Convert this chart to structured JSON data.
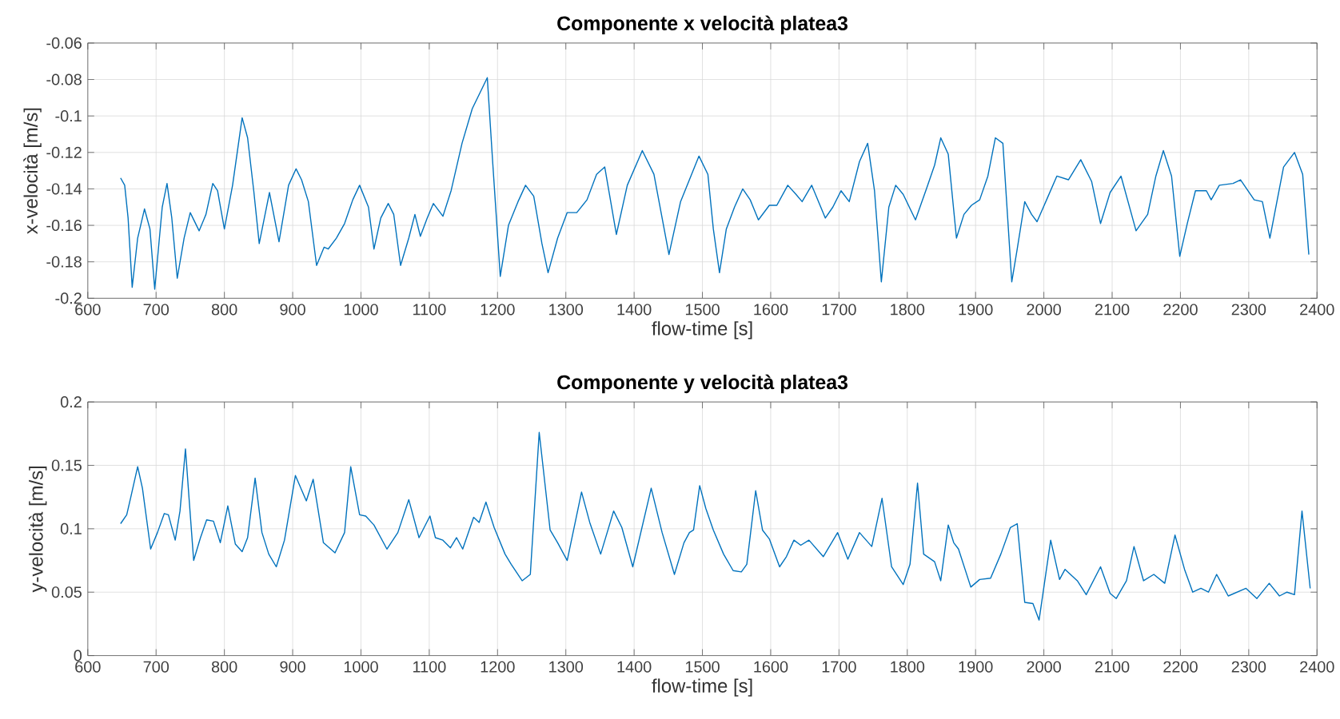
{
  "chart_data": [
    {
      "type": "line",
      "title": "Componente x velocità platea3",
      "xlabel": "flow-time [s]",
      "ylabel": "x-velocità [m/s]",
      "grid": true,
      "xlim": [
        600,
        2400
      ],
      "ylim": [
        -0.2,
        -0.06
      ],
      "xticks": [
        600,
        700,
        800,
        900,
        1000,
        1100,
        1200,
        1300,
        1400,
        1500,
        1600,
        1700,
        1800,
        1900,
        2000,
        2100,
        2200,
        2300,
        2400
      ],
      "yticks": [
        -0.2,
        -0.18,
        -0.16,
        -0.14,
        -0.12,
        -0.1,
        -0.08,
        -0.06
      ],
      "series": [
        {
          "color": "#0072bd",
          "x": [
            648,
            654,
            659,
            665,
            673,
            683,
            691,
            698,
            709,
            716,
            723,
            731,
            741,
            750,
            763,
            773,
            783,
            790,
            800,
            812,
            826,
            834,
            843,
            851,
            866,
            880,
            894,
            905,
            913,
            923,
            935,
            946,
            952,
            964,
            976,
            988,
            998,
            1011,
            1019,
            1029,
            1040,
            1048,
            1058,
            1070,
            1079,
            1087,
            1097,
            1106,
            1120,
            1132,
            1148,
            1163,
            1185,
            1193,
            1204,
            1216,
            1230,
            1241,
            1253,
            1265,
            1274,
            1288,
            1302,
            1316,
            1331,
            1345,
            1357,
            1374,
            1390,
            1412,
            1429,
            1451,
            1468,
            1495,
            1508,
            1516,
            1525,
            1535,
            1547,
            1559,
            1570,
            1582,
            1598,
            1609,
            1625,
            1637,
            1646,
            1660,
            1680,
            1691,
            1703,
            1715,
            1730,
            1742,
            1752,
            1762,
            1773,
            1783,
            1794,
            1812,
            1828,
            1840,
            1849,
            1860,
            1872,
            1883,
            1894,
            1906,
            1918,
            1929,
            1940,
            1953,
            1961,
            1972,
            1982,
            1990,
            2004,
            2019,
            2036,
            2054,
            2070,
            2083,
            2097,
            2113,
            2135,
            2152,
            2164,
            2175,
            2187,
            2199,
            2210,
            2222,
            2238,
            2245,
            2257,
            2277,
            2288,
            2308,
            2320,
            2331,
            2351,
            2367,
            2379,
            2388
          ],
          "values": [
            -0.134,
            -0.138,
            -0.156,
            -0.194,
            -0.167,
            -0.151,
            -0.162,
            -0.195,
            -0.15,
            -0.137,
            -0.156,
            -0.189,
            -0.167,
            -0.153,
            -0.163,
            -0.154,
            -0.137,
            -0.141,
            -0.162,
            -0.138,
            -0.101,
            -0.112,
            -0.141,
            -0.17,
            -0.142,
            -0.169,
            -0.138,
            -0.129,
            -0.135,
            -0.147,
            -0.182,
            -0.172,
            -0.173,
            -0.167,
            -0.159,
            -0.146,
            -0.138,
            -0.15,
            -0.173,
            -0.156,
            -0.148,
            -0.154,
            -0.182,
            -0.167,
            -0.154,
            -0.166,
            -0.156,
            -0.148,
            -0.155,
            -0.141,
            -0.115,
            -0.096,
            -0.079,
            -0.126,
            -0.188,
            -0.16,
            -0.147,
            -0.138,
            -0.144,
            -0.17,
            -0.186,
            -0.167,
            -0.153,
            -0.153,
            -0.146,
            -0.132,
            -0.128,
            -0.165,
            -0.138,
            -0.119,
            -0.132,
            -0.176,
            -0.147,
            -0.122,
            -0.132,
            -0.162,
            -0.186,
            -0.162,
            -0.15,
            -0.14,
            -0.146,
            -0.157,
            -0.149,
            -0.149,
            -0.138,
            -0.143,
            -0.147,
            -0.138,
            -0.156,
            -0.15,
            -0.141,
            -0.147,
            -0.125,
            -0.115,
            -0.141,
            -0.191,
            -0.15,
            -0.138,
            -0.143,
            -0.157,
            -0.14,
            -0.127,
            -0.112,
            -0.121,
            -0.167,
            -0.154,
            -0.149,
            -0.146,
            -0.133,
            -0.112,
            -0.115,
            -0.191,
            -0.173,
            -0.147,
            -0.154,
            -0.158,
            -0.146,
            -0.133,
            -0.135,
            -0.124,
            -0.136,
            -0.159,
            -0.142,
            -0.133,
            -0.163,
            -0.154,
            -0.133,
            -0.119,
            -0.133,
            -0.177,
            -0.159,
            -0.141,
            -0.141,
            -0.146,
            -0.138,
            -0.137,
            -0.135,
            -0.146,
            -0.147,
            -0.167,
            -0.128,
            -0.12,
            -0.132,
            -0.176
          ]
        }
      ]
    },
    {
      "type": "line",
      "title": "Componente y velocità platea3",
      "xlabel": "flow-time [s]",
      "ylabel": "y-velocità [m/s]",
      "grid": true,
      "xlim": [
        600,
        2400
      ],
      "ylim": [
        0,
        0.2
      ],
      "xticks": [
        600,
        700,
        800,
        900,
        1000,
        1100,
        1200,
        1300,
        1400,
        1500,
        1600,
        1700,
        1800,
        1900,
        2000,
        2100,
        2200,
        2300,
        2400
      ],
      "yticks": [
        0,
        0.05,
        0.1,
        0.15,
        0.2
      ],
      "series": [
        {
          "color": "#0072bd",
          "x": [
            648,
            657,
            663,
            673,
            680,
            692,
            702,
            712,
            718,
            728,
            735,
            743,
            748,
            755,
            765,
            774,
            784,
            794,
            805,
            816,
            826,
            834,
            845,
            855,
            865,
            876,
            888,
            904,
            920,
            930,
            945,
            962,
            976,
            985,
            998,
            1007,
            1019,
            1038,
            1054,
            1070,
            1085,
            1101,
            1109,
            1120,
            1131,
            1140,
            1149,
            1165,
            1173,
            1183,
            1195,
            1211,
            1220,
            1236,
            1248,
            1261,
            1277,
            1288,
            1302,
            1323,
            1335,
            1351,
            1370,
            1382,
            1398,
            1425,
            1441,
            1459,
            1473,
            1481,
            1487,
            1496,
            1505,
            1516,
            1531,
            1545,
            1557,
            1565,
            1578,
            1588,
            1598,
            1613,
            1623,
            1634,
            1644,
            1656,
            1677,
            1698,
            1713,
            1730,
            1748,
            1763,
            1777,
            1794,
            1804,
            1815,
            1824,
            1840,
            1849,
            1860,
            1868,
            1875,
            1893,
            1906,
            1922,
            1937,
            1951,
            1961,
            1972,
            1984,
            1993,
            2010,
            2023,
            2031,
            2049,
            2062,
            2083,
            2097,
            2106,
            2121,
            2132,
            2146,
            2161,
            2177,
            2192,
            2206,
            2218,
            2230,
            2241,
            2253,
            2270,
            2296,
            2312,
            2330,
            2345,
            2356,
            2367,
            2378,
            2390
          ],
          "values": [
            0.104,
            0.111,
            0.125,
            0.149,
            0.132,
            0.084,
            0.097,
            0.112,
            0.111,
            0.091,
            0.114,
            0.163,
            0.126,
            0.075,
            0.093,
            0.107,
            0.106,
            0.089,
            0.118,
            0.088,
            0.082,
            0.093,
            0.14,
            0.097,
            0.08,
            0.07,
            0.091,
            0.142,
            0.122,
            0.139,
            0.089,
            0.081,
            0.097,
            0.149,
            0.111,
            0.11,
            0.103,
            0.084,
            0.097,
            0.123,
            0.093,
            0.11,
            0.093,
            0.091,
            0.085,
            0.093,
            0.084,
            0.109,
            0.105,
            0.121,
            0.101,
            0.08,
            0.072,
            0.059,
            0.064,
            0.176,
            0.099,
            0.089,
            0.075,
            0.129,
            0.105,
            0.08,
            0.114,
            0.101,
            0.07,
            0.132,
            0.097,
            0.064,
            0.089,
            0.097,
            0.099,
            0.134,
            0.116,
            0.099,
            0.08,
            0.067,
            0.066,
            0.072,
            0.13,
            0.099,
            0.092,
            0.07,
            0.078,
            0.091,
            0.087,
            0.091,
            0.078,
            0.097,
            0.076,
            0.097,
            0.086,
            0.124,
            0.07,
            0.056,
            0.072,
            0.136,
            0.08,
            0.074,
            0.059,
            0.103,
            0.089,
            0.084,
            0.054,
            0.06,
            0.061,
            0.08,
            0.101,
            0.104,
            0.042,
            0.041,
            0.028,
            0.091,
            0.06,
            0.068,
            0.059,
            0.048,
            0.07,
            0.049,
            0.045,
            0.059,
            0.086,
            0.059,
            0.064,
            0.057,
            0.095,
            0.068,
            0.05,
            0.053,
            0.05,
            0.064,
            0.047,
            0.053,
            0.045,
            0.057,
            0.047,
            0.05,
            0.048,
            0.114,
            0.053
          ]
        }
      ]
    }
  ]
}
